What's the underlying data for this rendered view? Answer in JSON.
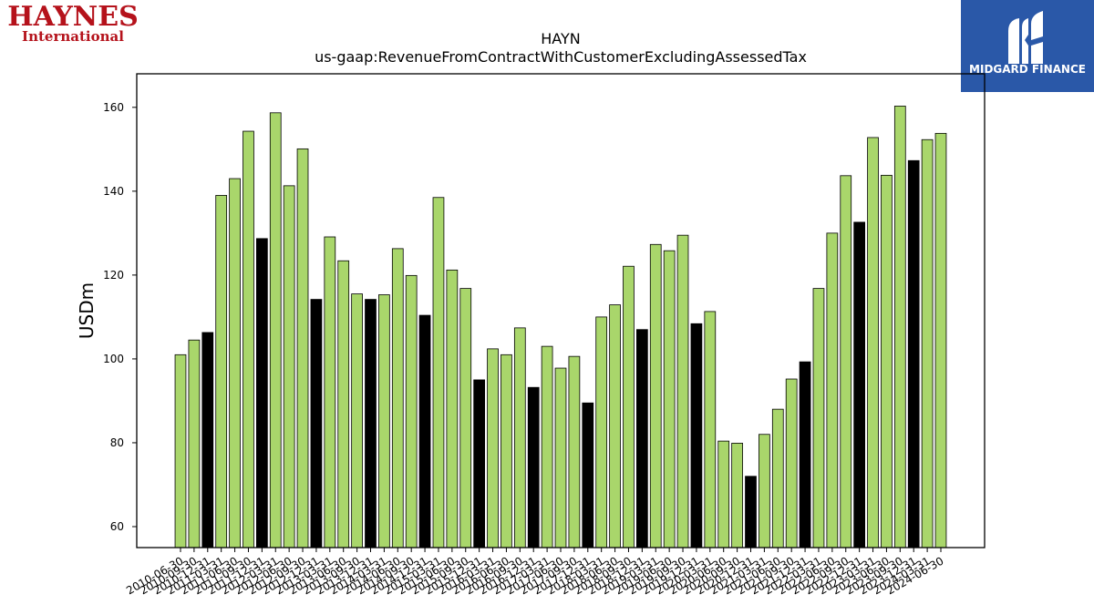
{
  "logos": {
    "left": {
      "line1": "HAYNES",
      "line2": "International",
      "color": "#b5121b"
    },
    "right": {
      "text": "MIDGARD FINANCE",
      "bg": "#2a58a8"
    }
  },
  "chart_data": {
    "type": "bar",
    "title": "HAYN",
    "subtitle": "us-gaap:RevenueFromContractWithCustomerExcludingAssessedTax",
    "ylabel": "USDm",
    "xlabel": "",
    "ylim": [
      55,
      168
    ],
    "yticks": [
      60,
      80,
      100,
      120,
      140,
      160
    ],
    "colors": {
      "quarter": "#a9d66b",
      "annual": "#000000",
      "edge": "#000000"
    },
    "categories": [
      "2010-06-30",
      "2010-09-30",
      "2010-12-31",
      "2011-03-31",
      "2011-06-30",
      "2011-09-30",
      "2011-12-31",
      "2012-03-31",
      "2012-06-30",
      "2012-09-30",
      "2012-12-31",
      "2013-03-31",
      "2013-06-30",
      "2013-09-30",
      "2013-12-31",
      "2014-03-31",
      "2014-06-30",
      "2014-09-30",
      "2014-12-31",
      "2015-03-31",
      "2015-06-30",
      "2015-09-30",
      "2015-12-31",
      "2016-03-31",
      "2016-06-30",
      "2016-09-30",
      "2016-12-31",
      "2017-03-31",
      "2017-06-30",
      "2017-09-30",
      "2017-12-31",
      "2018-03-31",
      "2018-06-30",
      "2018-09-30",
      "2018-12-31",
      "2019-03-31",
      "2019-06-30",
      "2019-09-30",
      "2019-12-31",
      "2020-03-31",
      "2020-06-30",
      "2020-09-30",
      "2020-12-31",
      "2021-03-31",
      "2021-06-30",
      "2021-09-30",
      "2021-12-31",
      "2022-03-31",
      "2022-06-30",
      "2022-09-30",
      "2022-12-31",
      "2023-03-31",
      "2023-06-30",
      "2023-09-30",
      "2023-12-31",
      "2024-03-31",
      "2024-06-30"
    ],
    "values": [
      101.0,
      104.5,
      106.3,
      139.0,
      143.0,
      154.3,
      128.7,
      158.7,
      141.3,
      150.1,
      114.2,
      129.1,
      123.4,
      115.5,
      114.2,
      115.3,
      126.3,
      119.9,
      110.4,
      138.5,
      121.2,
      116.8,
      95.0,
      102.4,
      101.0,
      107.4,
      93.2,
      103.0,
      97.8,
      100.6,
      89.5,
      110.0,
      112.9,
      122.1,
      107.0,
      127.3,
      125.8,
      129.5,
      108.4,
      111.3,
      80.4,
      79.9,
      72.0,
      82.0,
      88.0,
      95.2,
      99.3,
      116.8,
      130.0,
      143.7,
      132.6,
      152.8,
      143.8,
      160.3,
      147.3,
      152.3,
      153.8
    ],
    "fiscal_year_end": [
      false,
      false,
      true,
      false,
      false,
      false,
      true,
      false,
      false,
      false,
      true,
      false,
      false,
      false,
      true,
      false,
      false,
      false,
      true,
      false,
      false,
      false,
      true,
      false,
      false,
      false,
      true,
      false,
      false,
      false,
      true,
      false,
      false,
      false,
      true,
      false,
      false,
      false,
      true,
      false,
      false,
      false,
      true,
      false,
      false,
      false,
      true,
      false,
      false,
      false,
      true,
      false,
      false,
      false,
      true,
      false,
      false
    ]
  }
}
